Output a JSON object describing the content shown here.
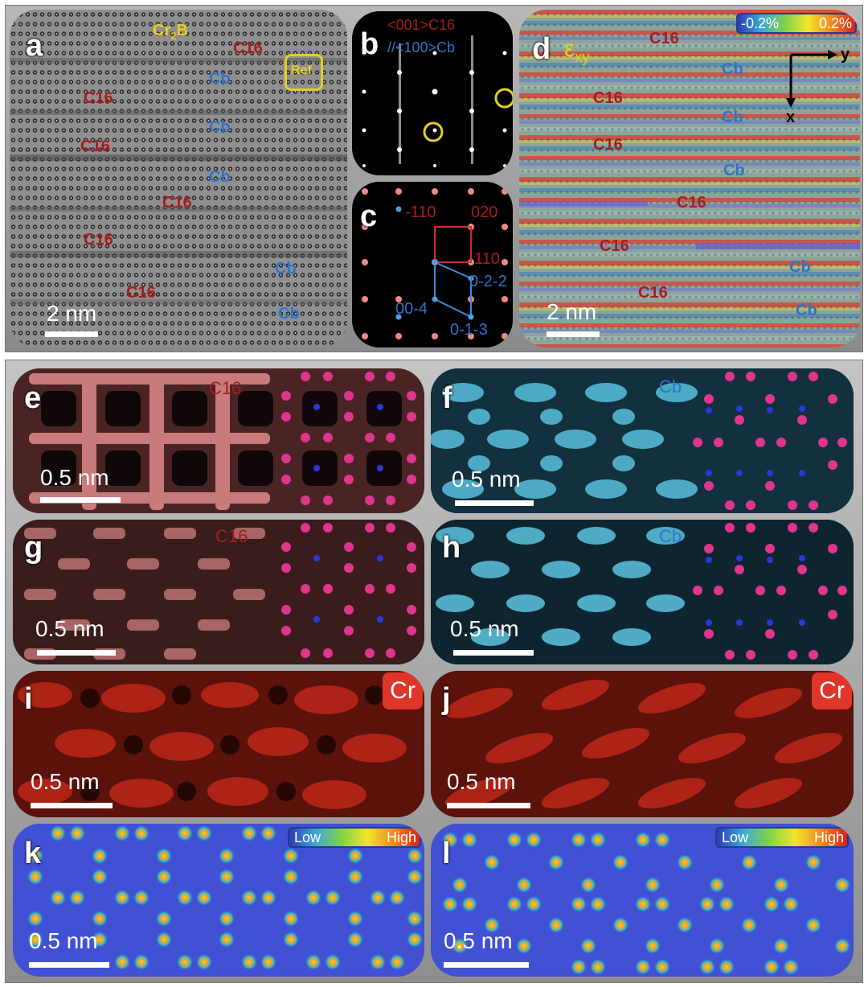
{
  "panels": {
    "a": {
      "letter": "a",
      "title_prefix": "Cr",
      "title_subscript": "2",
      "title_suffix": "B",
      "ref": "Ref",
      "phase_labels": [
        "C16",
        "Cb",
        "C16",
        "Cb",
        "C16",
        "Cb",
        "C16",
        "C16",
        "Cb",
        "C16",
        "Cb"
      ],
      "scale": "2 nm"
    },
    "b": {
      "letter": "b",
      "line1": "<001>C16",
      "line2": "//<100>Cb"
    },
    "c": {
      "letter": "c",
      "indices": [
        "-110",
        "020",
        "110",
        "0-2-2",
        "00-4",
        "0-1-3"
      ]
    },
    "d": {
      "letter": "d",
      "strain": "ε",
      "strain_sub": "xy",
      "colorbar_min": "-0.2%",
      "colorbar_max": "0.2%",
      "axis_y": "y",
      "axis_x": "x",
      "phase_labels": [
        "C16",
        "Cb",
        "C16",
        "Cb",
        "C16",
        "Cb",
        "C16",
        "C16",
        "Cb",
        "C16",
        "Cb"
      ],
      "scale": "2 nm"
    },
    "e": {
      "letter": "e",
      "phase": "C16",
      "scale": "0.5 nm"
    },
    "f": {
      "letter": "f",
      "phase": "Cb",
      "scale": "0.5 nm"
    },
    "g": {
      "letter": "g",
      "phase": "C16",
      "scale": "0.5 nm"
    },
    "h": {
      "letter": "h",
      "phase": "Cb",
      "scale": "0.5 nm"
    },
    "i": {
      "letter": "i",
      "element": "Cr",
      "scale": "0.5 nm"
    },
    "j": {
      "letter": "j",
      "element": "Cr",
      "scale": "0.5 nm"
    },
    "k": {
      "letter": "k",
      "colorbar_low": "Low",
      "colorbar_high": "High",
      "scale": "0.5 nm"
    },
    "l": {
      "letter": "l",
      "colorbar_low": "Low",
      "colorbar_high": "High",
      "scale": "0.5 nm"
    }
  },
  "colors": {
    "c16_label": "#a81c1c",
    "cb_label": "#2f74c9",
    "highlight": "#e3d11e",
    "atom_magenta": "#e0358f",
    "atom_blue": "#2838d8",
    "cr_map": "#d42a1c",
    "density_bg": "#3a48d0"
  }
}
